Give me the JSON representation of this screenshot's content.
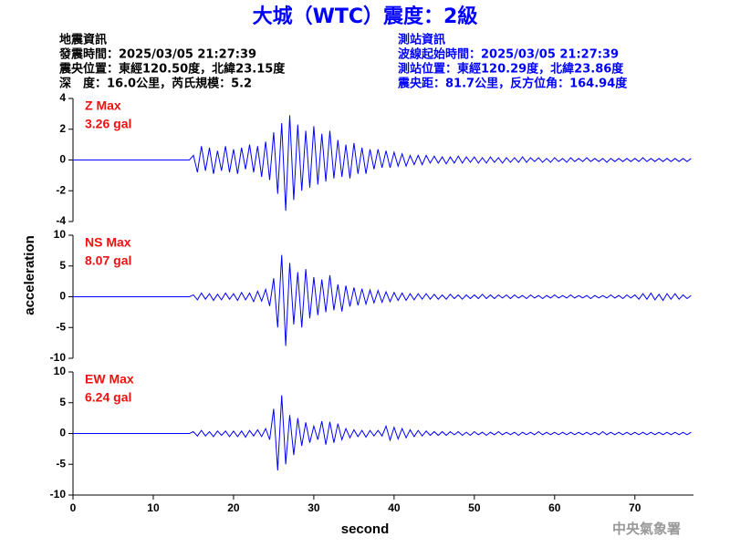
{
  "header": {
    "title": "大城（WTC）震度：2級",
    "left": [
      "地震資訊",
      "發震時間：2025/03/05 21:27:39",
      "震央位置：東經120.50度，北緯23.15度",
      "深　度：16.0公里，芮氏規模：5.2"
    ],
    "right": [
      "測站資訊",
      "波線起始時間：2025/03/05 21:27:39",
      "測站位置：東經120.29度，北緯23.86度",
      "震央距：81.7公里，反方位角：164.94度"
    ],
    "footer": "中央氣象署"
  },
  "chart_data": {
    "type": "line",
    "xlabel": "second",
    "ylabel": "acceleration",
    "xlim": [
      0,
      77.3
    ],
    "xticks": [
      0,
      10,
      20,
      30,
      40,
      50,
      60,
      70
    ],
    "x": [
      0,
      0.5,
      1,
      1.5,
      2,
      2.5,
      3,
      3.5,
      4,
      4.5,
      5,
      5.5,
      6,
      6.5,
      7,
      7.5,
      8,
      8.5,
      9,
      9.5,
      10,
      10.5,
      11,
      11.5,
      12,
      12.5,
      13,
      13.5,
      14,
      14.5,
      15,
      15.5,
      16,
      16.5,
      17,
      17.5,
      18,
      18.5,
      19,
      19.5,
      20,
      20.5,
      21,
      21.5,
      22,
      22.5,
      23,
      23.5,
      24,
      24.5,
      25,
      25.5,
      26,
      26.5,
      27,
      27.5,
      28,
      28.5,
      29,
      29.5,
      30,
      30.5,
      31,
      31.5,
      32,
      32.5,
      33,
      33.5,
      34,
      34.5,
      35,
      35.5,
      36,
      36.5,
      37,
      37.5,
      38,
      38.5,
      39,
      39.5,
      40,
      40.5,
      41,
      41.5,
      42,
      42.5,
      43,
      43.5,
      44,
      44.5,
      45,
      45.5,
      46,
      46.5,
      47,
      47.5,
      48,
      48.5,
      49,
      49.5,
      50,
      50.5,
      51,
      51.5,
      52,
      52.5,
      53,
      53.5,
      54,
      54.5,
      55,
      55.5,
      56,
      56.5,
      57,
      57.5,
      58,
      58.5,
      59,
      59.5,
      60,
      60.5,
      61,
      61.5,
      62,
      62.5,
      63,
      63.5,
      64,
      64.5,
      65,
      65.5,
      66,
      66.5,
      67,
      67.5,
      68,
      68.5,
      69,
      69.5,
      70,
      70.5,
      71,
      71.5,
      72,
      72.5,
      73,
      73.5,
      74,
      74.5,
      75,
      75.5,
      76,
      76.5,
      77
    ],
    "panels": [
      {
        "label": "Z Max",
        "max_label": "3.26 gal",
        "color": "#0000ff",
        "ylim": [
          -4,
          4
        ],
        "yticks": [
          4,
          2,
          0,
          -2,
          -4
        ],
        "values": [
          0,
          0,
          0,
          0,
          0,
          0,
          0,
          0,
          0,
          0,
          0,
          0,
          0,
          0,
          0,
          0,
          0,
          0,
          0,
          0,
          0,
          0,
          0,
          0,
          0,
          0,
          0,
          0,
          0,
          0,
          0.3,
          -0.8,
          0.9,
          -0.7,
          0.8,
          -0.9,
          0.6,
          -0.7,
          0.9,
          -0.8,
          0.7,
          -0.9,
          0.8,
          -0.6,
          1.0,
          -0.8,
          0.9,
          -1.1,
          1.2,
          -1.3,
          1.8,
          -2.2,
          2.4,
          -3.3,
          2.9,
          -2.6,
          2.3,
          -2.0,
          1.9,
          -1.8,
          2.2,
          -1.6,
          1.7,
          -1.4,
          1.9,
          -1.2,
          1.3,
          -1.1,
          1.0,
          -1.2,
          1.1,
          -0.9,
          0.8,
          -0.9,
          0.7,
          -0.6,
          0.7,
          -0.5,
          0.6,
          -0.5,
          0.5,
          -0.4,
          0.4,
          -0.4,
          0.3,
          -0.3,
          0.3,
          -0.3,
          0.3,
          -0.2,
          0.25,
          -0.2,
          0.2,
          -0.25,
          0.2,
          -0.2,
          0.25,
          -0.2,
          0.2,
          -0.15,
          0.2,
          -0.2,
          0.15,
          -0.2,
          0.2,
          -0.15,
          0.15,
          -0.2,
          0.15,
          -0.15,
          0.15,
          -0.15,
          0.2,
          -0.15,
          0.15,
          -0.1,
          0.15,
          -0.15,
          0.1,
          -0.15,
          0.15,
          -0.1,
          0.1,
          -0.15,
          0.15,
          -0.1,
          0.1,
          -0.1,
          0.15,
          -0.1,
          0.1,
          -0.1,
          0.1,
          -0.15,
          0.1,
          -0.1,
          0.1,
          -0.1,
          0.1,
          -0.1,
          0.1,
          -0.1,
          0.15,
          -0.1,
          0.1,
          -0.1,
          0.1,
          -0.1,
          0.1,
          -0.1,
          0.1,
          -0.1,
          0.1,
          -0.1,
          0.1
        ]
      },
      {
        "label": "NS Max",
        "max_label": "8.07 gal",
        "color": "#0000ff",
        "ylim": [
          -10,
          10
        ],
        "yticks": [
          10,
          5,
          0,
          -5,
          -10
        ],
        "values": [
          0,
          0,
          0,
          0,
          0,
          0,
          0,
          0,
          0,
          0,
          0,
          0,
          0,
          0,
          0,
          0,
          0,
          0,
          0,
          0,
          0,
          0,
          0,
          0,
          0,
          0,
          0,
          0,
          0,
          0,
          0.3,
          -0.5,
          0.6,
          -0.4,
          0.5,
          -0.6,
          0.4,
          -0.5,
          0.6,
          -0.4,
          0.5,
          -0.6,
          0.7,
          -0.5,
          0.6,
          -0.8,
          0.9,
          -0.7,
          1.2,
          -1.5,
          3.0,
          -5.0,
          6.8,
          -8.0,
          5.5,
          -4.5,
          4.0,
          -5.0,
          4.5,
          -3.5,
          3.2,
          -3.0,
          2.8,
          -2.5,
          3.5,
          -2.2,
          2.0,
          -2.4,
          1.8,
          -1.6,
          1.5,
          -1.4,
          1.3,
          -1.2,
          1.1,
          -1.0,
          1.0,
          -0.9,
          0.8,
          -0.8,
          0.7,
          -0.6,
          0.6,
          -0.6,
          0.5,
          -0.5,
          0.5,
          -0.4,
          0.5,
          -0.4,
          0.4,
          -0.4,
          0.3,
          -0.4,
          0.4,
          -0.3,
          0.3,
          -0.4,
          0.3,
          -0.3,
          0.3,
          -0.3,
          0.4,
          -0.3,
          0.3,
          -0.3,
          0.3,
          -0.2,
          0.3,
          -0.3,
          0.3,
          -0.2,
          0.2,
          -0.3,
          0.3,
          -0.2,
          0.2,
          -0.3,
          0.2,
          -0.2,
          0.3,
          -0.2,
          0.2,
          -0.2,
          0.3,
          -0.2,
          0.2,
          -0.2,
          0.2,
          -0.3,
          0.2,
          -0.2,
          0.2,
          -0.2,
          0.3,
          -0.2,
          0.2,
          -0.3,
          0.3,
          -0.2,
          0.3,
          -0.4,
          0.5,
          -0.4,
          0.6,
          -0.5,
          0.4,
          -0.6,
          0.5,
          -0.4,
          0.5,
          -0.4,
          0.3,
          -0.3,
          0.2
        ]
      },
      {
        "label": "EW Max",
        "max_label": "6.24 gal",
        "color": "#0000ff",
        "ylim": [
          -10,
          10
        ],
        "yticks": [
          10,
          5,
          0,
          -5,
          -10
        ],
        "values": [
          0,
          0,
          0,
          0,
          0,
          0,
          0,
          0,
          0,
          0,
          0,
          0,
          0,
          0,
          0,
          0,
          0,
          0,
          0,
          0,
          0,
          0,
          0,
          0,
          0,
          0,
          0,
          0,
          0,
          0,
          0.3,
          -0.4,
          0.5,
          -0.4,
          0.3,
          -0.5,
          0.4,
          -0.3,
          0.4,
          -0.5,
          0.4,
          -0.5,
          0.4,
          -0.6,
          0.5,
          -0.4,
          0.6,
          -0.5,
          0.8,
          -1.0,
          4.0,
          -6.0,
          6.2,
          -5.0,
          3.0,
          -3.5,
          2.5,
          -2.0,
          1.8,
          -1.5,
          1.2,
          -1.0,
          2.0,
          -1.8,
          1.9,
          -1.5,
          1.6,
          -1.0,
          0.8,
          -0.7,
          0.6,
          -0.5,
          0.5,
          -0.6,
          0.5,
          -0.4,
          0.5,
          -0.4,
          1.2,
          -1.1,
          1.0,
          -0.9,
          0.8,
          -0.7,
          0.6,
          -0.5,
          0.5,
          -0.4,
          0.4,
          -0.3,
          0.3,
          -0.3,
          0.3,
          -0.3,
          0.3,
          -0.2,
          0.3,
          -0.3,
          0.2,
          -0.3,
          0.3,
          -0.2,
          0.2,
          -0.3,
          0.2,
          -0.2,
          0.3,
          -0.2,
          0.2,
          -0.2,
          0.2,
          -0.3,
          0.2,
          -0.2,
          0.2,
          -0.2,
          0.3,
          -0.2,
          0.2,
          -0.2,
          0.2,
          -0.2,
          0.2,
          -0.2,
          0.2,
          -0.2,
          0.2,
          -0.2,
          0.2,
          -0.2,
          0.2,
          -0.2,
          0.3,
          -0.2,
          0.2,
          -0.2,
          0.2,
          -0.2,
          0.2,
          -0.2,
          0.2,
          -0.2,
          0.2,
          -0.2,
          0.2,
          -0.2,
          0.2,
          -0.2,
          0.2,
          -0.2,
          0.2,
          -0.2,
          0.2,
          -0.2,
          0.2
        ]
      }
    ]
  }
}
